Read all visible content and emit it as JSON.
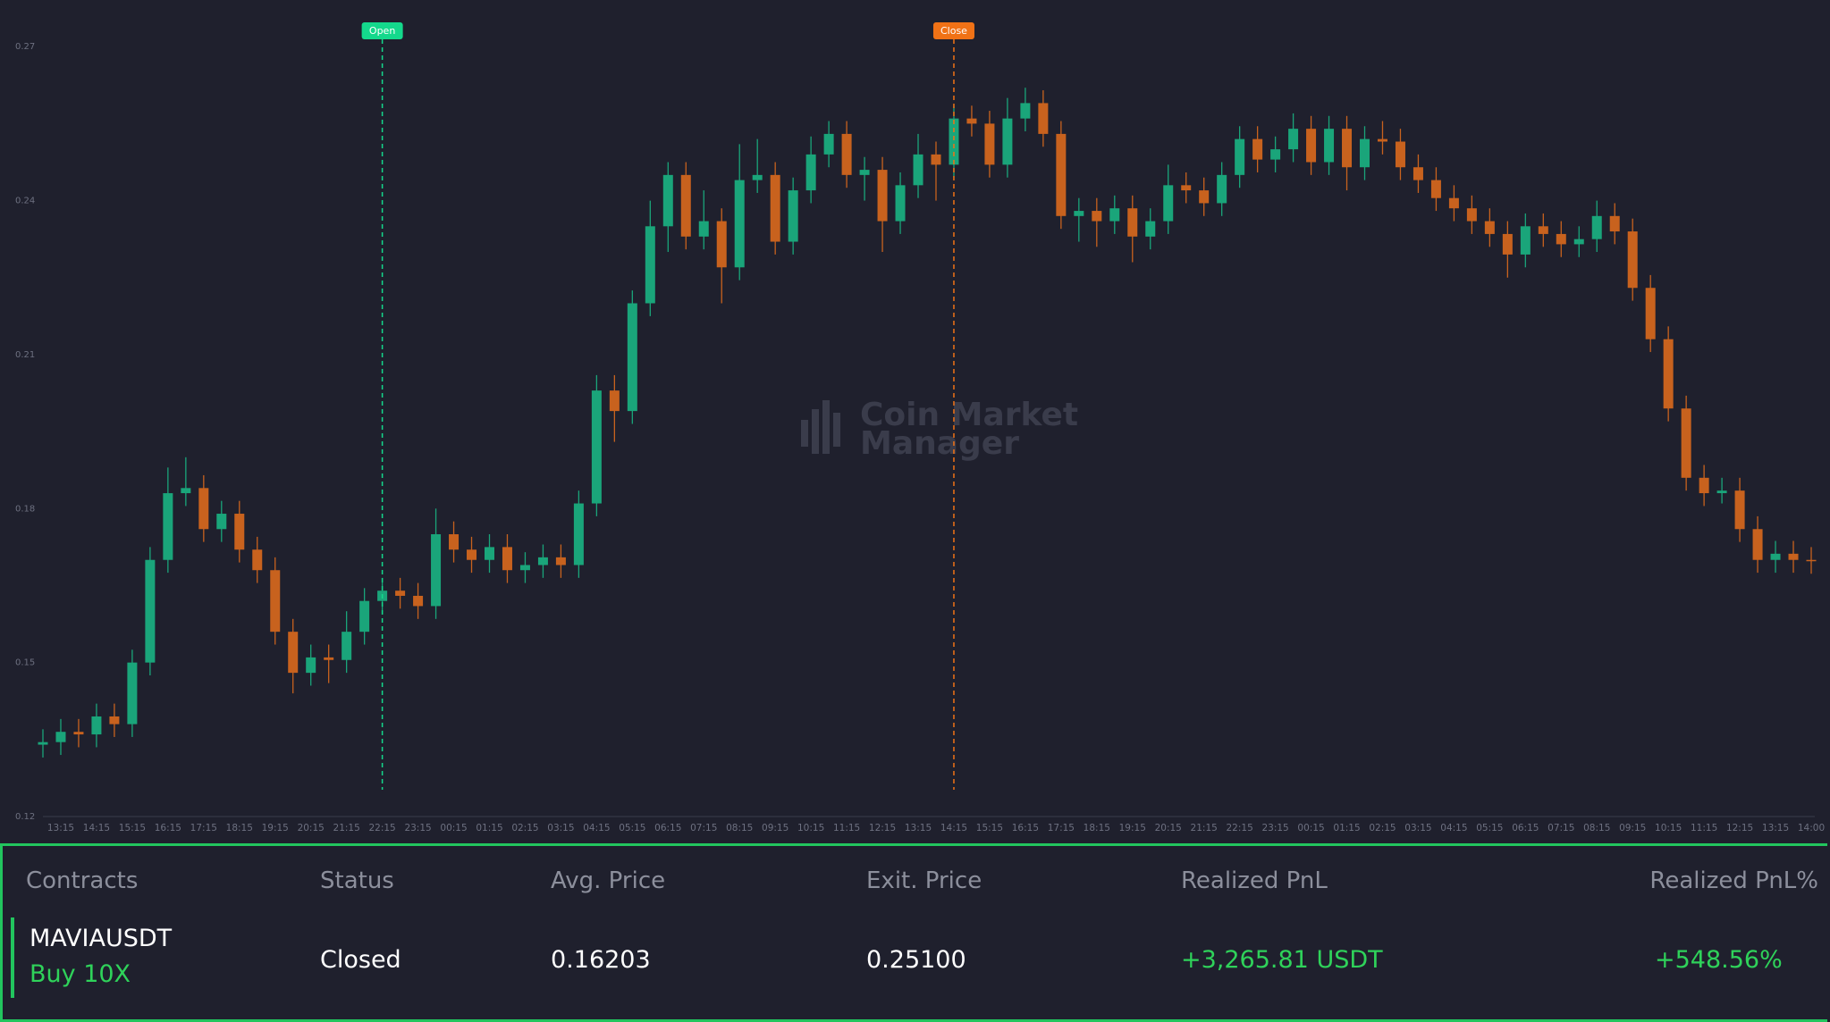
{
  "chart_data": {
    "type": "candlestick",
    "up_color": "#1aa57a",
    "down_color": "#c8621e",
    "ylim": [
      0.12,
      0.277
    ],
    "yticks": [
      0.12,
      0.15,
      0.18,
      0.21,
      0.24,
      0.27
    ],
    "categories": [
      null,
      "13:15",
      null,
      "14:15",
      null,
      "15:15",
      null,
      "16:15",
      null,
      "17:15",
      null,
      "18:15",
      null,
      "19:15",
      null,
      "20:15",
      null,
      "21:15",
      null,
      "22:15",
      null,
      "23:15",
      null,
      "00:15",
      null,
      "01:15",
      null,
      "02:15",
      null,
      "03:15",
      null,
      "04:15",
      null,
      "05:15",
      null,
      "06:15",
      null,
      "07:15",
      null,
      "08:15",
      null,
      "09:15",
      null,
      "10:15",
      null,
      "11:15",
      null,
      "12:15",
      null,
      "13:15",
      null,
      "14:15",
      null,
      "15:15",
      null,
      "16:15",
      null,
      "17:15",
      null,
      "18:15",
      null,
      "19:15",
      null,
      "20:15",
      null,
      "21:15",
      null,
      "22:15",
      null,
      "23:15",
      null,
      "00:15",
      null,
      "01:15",
      null,
      "02:15",
      null,
      "03:15",
      null,
      "04:15",
      null,
      "05:15",
      null,
      "06:15",
      null,
      "07:15",
      null,
      "08:15",
      null,
      "09:15",
      null,
      "10:15",
      null,
      "11:15",
      null,
      "12:15",
      null,
      "13:15",
      null,
      "14:00"
    ],
    "open": [
      0.134,
      0.1345,
      0.1365,
      0.136,
      0.1395,
      0.138,
      0.15,
      0.17,
      0.183,
      0.184,
      0.176,
      0.179,
      0.172,
      0.168,
      0.156,
      0.148,
      0.151,
      0.1505,
      0.156,
      0.162,
      0.164,
      0.163,
      0.161,
      0.175,
      0.172,
      0.17,
      0.1725,
      0.168,
      0.169,
      0.1705,
      0.169,
      0.181,
      0.203,
      0.199,
      0.22,
      0.235,
      0.245,
      0.233,
      0.236,
      0.227,
      0.244,
      0.245,
      0.232,
      0.242,
      0.249,
      0.253,
      0.245,
      0.246,
      0.236,
      0.243,
      0.249,
      0.247,
      0.256,
      0.255,
      0.247,
      0.256,
      0.259,
      0.253,
      0.237,
      0.238,
      0.236,
      0.2385,
      0.233,
      0.236,
      0.243,
      0.242,
      0.2395,
      0.245,
      0.252,
      0.248,
      0.25,
      0.254,
      0.2475,
      0.254,
      0.2465,
      0.252,
      0.2515,
      0.2465,
      0.244,
      0.2405,
      0.2385,
      0.236,
      0.2335,
      0.2295,
      0.235,
      0.2335,
      0.2315,
      0.2325,
      0.237,
      0.234,
      0.223,
      0.213,
      0.1995,
      0.186,
      0.183,
      0.1835,
      0.176,
      0.17,
      0.1712,
      0.17
    ],
    "high": [
      0.137,
      0.139,
      0.139,
      0.142,
      0.142,
      0.1525,
      0.1725,
      0.188,
      0.19,
      0.1865,
      0.1815,
      0.1815,
      0.1745,
      0.1705,
      0.1585,
      0.1535,
      0.1535,
      0.16,
      0.1645,
      0.1665,
      0.1665,
      0.1655,
      0.18,
      0.1775,
      0.1745,
      0.175,
      0.175,
      0.1715,
      0.173,
      0.173,
      0.1835,
      0.206,
      0.206,
      0.2225,
      0.24,
      0.2475,
      0.2475,
      0.242,
      0.2385,
      0.251,
      0.252,
      0.2475,
      0.2445,
      0.2525,
      0.2555,
      0.2555,
      0.2485,
      0.2485,
      0.2455,
      0.253,
      0.2515,
      0.2585,
      0.2585,
      0.2575,
      0.26,
      0.262,
      0.2615,
      0.2555,
      0.2405,
      0.2405,
      0.241,
      0.241,
      0.2385,
      0.247,
      0.2455,
      0.2445,
      0.2475,
      0.2545,
      0.2545,
      0.2525,
      0.257,
      0.2565,
      0.2565,
      0.2565,
      0.2545,
      0.2555,
      0.254,
      0.249,
      0.2465,
      0.243,
      0.241,
      0.2385,
      0.236,
      0.2375,
      0.2375,
      0.236,
      0.235,
      0.24,
      0.2395,
      0.2365,
      0.2255,
      0.2155,
      0.202,
      0.1885,
      0.186,
      0.186,
      0.1785,
      0.1737,
      0.1737,
      0.1725
    ],
    "low": [
      0.1315,
      0.132,
      0.1335,
      0.1335,
      0.1355,
      0.1355,
      0.1475,
      0.1675,
      0.1805,
      0.1735,
      0.1735,
      0.1695,
      0.1655,
      0.1535,
      0.144,
      0.1455,
      0.146,
      0.148,
      0.1535,
      0.1595,
      0.1605,
      0.1585,
      0.1585,
      0.1695,
      0.1675,
      0.1675,
      0.1655,
      0.1655,
      0.1665,
      0.1665,
      0.1665,
      0.1785,
      0.193,
      0.1965,
      0.2175,
      0.23,
      0.2305,
      0.2305,
      0.22,
      0.2245,
      0.2415,
      0.2295,
      0.2295,
      0.2395,
      0.2465,
      0.2425,
      0.24,
      0.23,
      0.2335,
      0.2405,
      0.24,
      0.2445,
      0.2525,
      0.2445,
      0.2445,
      0.2535,
      0.2505,
      0.2345,
      0.232,
      0.231,
      0.2335,
      0.228,
      0.2305,
      0.2335,
      0.2395,
      0.237,
      0.237,
      0.2425,
      0.2455,
      0.2455,
      0.2475,
      0.245,
      0.245,
      0.242,
      0.244,
      0.249,
      0.244,
      0.2415,
      0.238,
      0.236,
      0.2335,
      0.231,
      0.225,
      0.227,
      0.231,
      0.229,
      0.229,
      0.23,
      0.2315,
      0.2205,
      0.2105,
      0.197,
      0.1835,
      0.1805,
      0.181,
      0.1735,
      0.1675,
      0.1675,
      0.1675,
      0.1673
    ],
    "close": [
      0.1345,
      0.1365,
      0.136,
      0.1395,
      0.138,
      0.15,
      0.17,
      0.183,
      0.184,
      0.176,
      0.179,
      0.172,
      0.168,
      0.156,
      0.148,
      0.151,
      0.1505,
      0.156,
      0.162,
      0.164,
      0.163,
      0.161,
      0.175,
      0.172,
      0.17,
      0.1725,
      0.168,
      0.169,
      0.1705,
      0.169,
      0.181,
      0.203,
      0.199,
      0.22,
      0.235,
      0.245,
      0.233,
      0.236,
      0.227,
      0.244,
      0.245,
      0.232,
      0.242,
      0.249,
      0.253,
      0.245,
      0.246,
      0.236,
      0.243,
      0.249,
      0.247,
      0.256,
      0.255,
      0.247,
      0.256,
      0.259,
      0.253,
      0.237,
      0.238,
      0.236,
      0.2385,
      0.233,
      0.236,
      0.243,
      0.242,
      0.2395,
      0.245,
      0.252,
      0.248,
      0.25,
      0.254,
      0.2475,
      0.254,
      0.2465,
      0.252,
      0.2515,
      0.2465,
      0.244,
      0.2405,
      0.2385,
      0.236,
      0.2335,
      0.2295,
      0.235,
      0.2335,
      0.2315,
      0.2325,
      0.237,
      0.234,
      0.223,
      0.213,
      0.1995,
      0.186,
      0.183,
      0.1835,
      0.176,
      0.17,
      0.1712,
      0.17,
      0.1698
    ],
    "markers": [
      {
        "text": "Open",
        "candle": 19,
        "color": "#14d98c"
      },
      {
        "text": "Close",
        "candle": 51,
        "color": "#f07216"
      }
    ],
    "watermark": [
      "Coin Market",
      "Manager"
    ]
  },
  "table": {
    "headers": [
      "Contracts",
      "Status",
      "Avg. Price",
      "Exit. Price",
      "Realized PnL",
      "Realized PnL%"
    ],
    "rows": [
      {
        "contract": "MAVIAUSDT",
        "side": "Buy 10X",
        "status": "Closed",
        "avg_price": "0.16203",
        "exit_price": "0.25100",
        "pnl": "+3,265.81 USDT",
        "pnl_pct": "+548.56%"
      }
    ]
  }
}
